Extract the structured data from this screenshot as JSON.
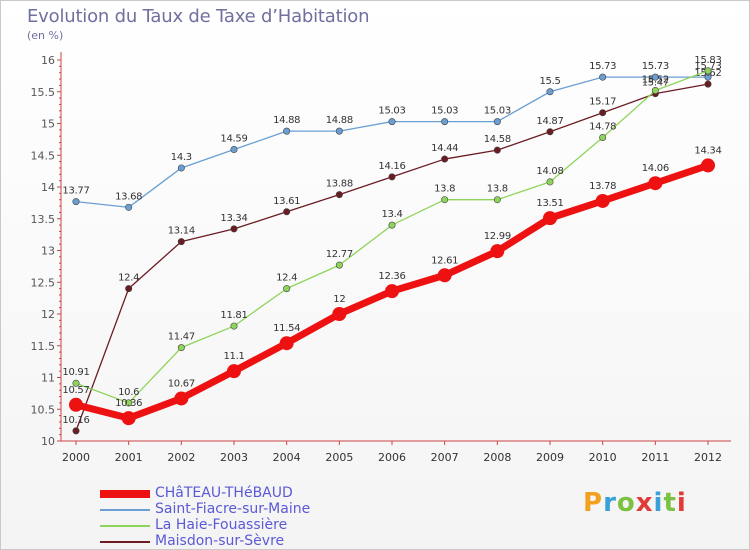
{
  "header": {
    "title": "Evolution du Taux de Taxe d’Habitation",
    "subtitle": "(en %)"
  },
  "logo": {
    "text": "Proxiti",
    "colors": [
      "#f2a11f",
      "#3aa0d8",
      "#7cc242",
      "#e23b37",
      "#3aa0d8",
      "#7cc242",
      "#e23b37"
    ]
  },
  "chart_data": {
    "type": "line",
    "x": [
      "2000",
      "2001",
      "2002",
      "2003",
      "2004",
      "2005",
      "2006",
      "2007",
      "2008",
      "2009",
      "2010",
      "2011",
      "2012"
    ],
    "ylim": [
      10,
      16
    ],
    "yticks": [
      "10",
      "10.5",
      "11",
      "11.5",
      "12",
      "12.5",
      "13",
      "13.5",
      "14",
      "14.5",
      "15",
      "15.5",
      "16"
    ],
    "grid": false,
    "legend_placement": "bottom-left",
    "series": [
      {
        "name": "Saint-Fiacre-sur-Maine",
        "color": "#6b9fd4",
        "values": [
          13.77,
          13.68,
          14.3,
          14.59,
          14.88,
          14.88,
          15.03,
          15.03,
          15.03,
          15.5,
          15.73,
          15.73,
          15.73
        ],
        "labels": [
          "13.77",
          "13.68",
          "14.3",
          "14.59",
          "14.88",
          "14.88",
          "15.03",
          "15.03",
          "15.03",
          "15.5",
          "15.73",
          "15.73",
          "15.73"
        ]
      },
      {
        "name": "Maisdon-sur-Sèvre",
        "color": "#6b1c23",
        "values": [
          10.16,
          12.4,
          13.14,
          13.34,
          13.61,
          13.88,
          14.16,
          14.44,
          14.58,
          14.87,
          15.17,
          15.47,
          15.62
        ],
        "labels": [
          "10.16",
          "12.4",
          "13.14",
          "13.34",
          "13.61",
          "13.88",
          "14.16",
          "14.44",
          "14.58",
          "14.87",
          "15.17",
          "15.47",
          "15.62"
        ]
      },
      {
        "name": "La Haie-Fouassière",
        "color": "#8fd45a",
        "values": [
          10.91,
          10.6,
          11.47,
          11.81,
          12.4,
          12.77,
          13.4,
          13.8,
          13.8,
          14.08,
          14.78,
          15.52,
          15.83
        ],
        "labels": [
          "10.91",
          "10.6",
          "11.47",
          "11.81",
          "12.4",
          "12.77",
          "13.4",
          "13.8",
          "13.8",
          "14.08",
          "14.78",
          "15.52",
          "15.83"
        ]
      },
      {
        "name": "CHâTEAU-THéBAUD",
        "color": "#ee1111",
        "values": [
          10.57,
          10.36,
          10.67,
          11.1,
          11.54,
          12,
          12.36,
          12.61,
          12.99,
          13.51,
          13.78,
          14.06,
          14.34
        ],
        "labels": [
          "10.57",
          "10.36",
          "10.67",
          "11.1",
          "11.54",
          "12",
          "12.36",
          "12.61",
          "12.99",
          "13.51",
          "13.78",
          "14.06",
          "14.34"
        ]
      }
    ]
  }
}
